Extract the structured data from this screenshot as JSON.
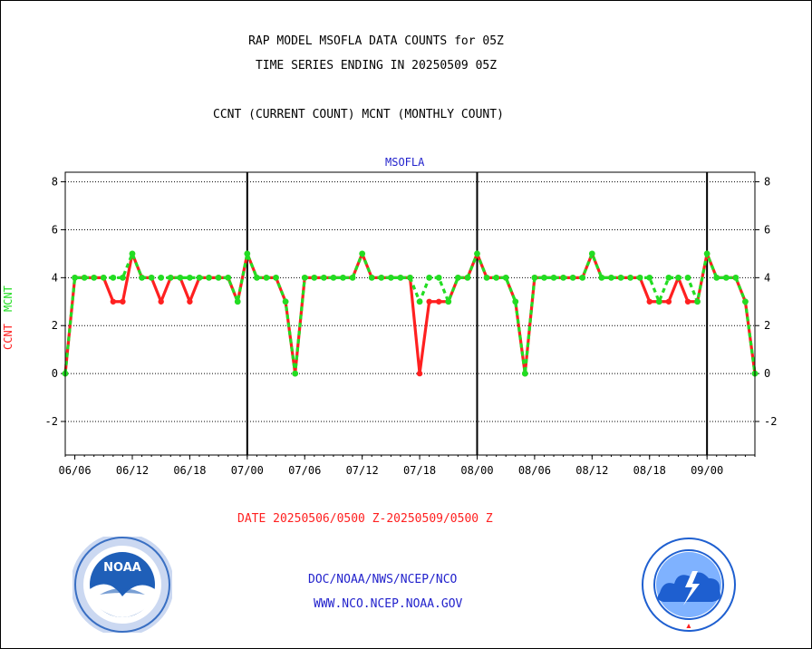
{
  "header": {
    "title_line1": "RAP MODEL MSOFLA DATA COUNTS for 05Z",
    "title_line2": "TIME SERIES ENDING IN 20250509 05Z",
    "subtitle": "CCNT (CURRENT COUNT) MCNT (MONTHLY COUNT)"
  },
  "station": "MSOFLA",
  "axis_labels": {
    "ccnt": "CCNT",
    "mcnt": "MCNT"
  },
  "date_range": "DATE 20250506/0500 Z-20250509/0500 Z",
  "footer": {
    "line1": "DOC/NOAA/NWS/NCEP/NCO",
    "line2": "WWW.NCO.NCEP.NOAA.GOV"
  },
  "logos": {
    "left": "noaa-logo",
    "right": "national-weather-service-logo"
  },
  "colors": {
    "ccnt": "#ff2020",
    "mcnt": "#22dd22",
    "text": "#000000",
    "blue_text": "#2222cc",
    "noaa_blue": "#1f5fb8",
    "nws_blue": "#1e5fd0"
  },
  "chart_data": {
    "type": "line",
    "title": "MSOFLA",
    "ylabel": "CCNT  MCNT",
    "ylim": [
      -3.4,
      8.4
    ],
    "yticks": [
      -2,
      0,
      2,
      4,
      6,
      8
    ],
    "xticks": [
      "06/06",
      "06/12",
      "06/18",
      "07/00",
      "07/06",
      "07/12",
      "07/18",
      "08/00",
      "08/06",
      "08/12",
      "08/18",
      "09/00"
    ],
    "xtick_positions": [
      1,
      7,
      13,
      19,
      25,
      31,
      37,
      43,
      49,
      55,
      61,
      67
    ],
    "day_boundaries": [
      19,
      43,
      67
    ],
    "xlim": [
      0,
      72
    ],
    "x": [
      0,
      1,
      2,
      3,
      4,
      5,
      6,
      7,
      8,
      9,
      10,
      11,
      12,
      13,
      14,
      15,
      16,
      17,
      18,
      19,
      20,
      21,
      22,
      23,
      24,
      25,
      26,
      27,
      28,
      29,
      30,
      31,
      32,
      33,
      34,
      35,
      36,
      37,
      38,
      39,
      40,
      41,
      42,
      43,
      44,
      45,
      46,
      47,
      48,
      49,
      50,
      51,
      52,
      53,
      54,
      55,
      56,
      57,
      58,
      59,
      60,
      61,
      62,
      63,
      64,
      65,
      66,
      67,
      68,
      69,
      70,
      71,
      72
    ],
    "series": [
      {
        "name": "CCNT",
        "values": [
          0,
          4,
          4,
          4,
          4,
          3,
          3,
          5,
          4,
          4,
          3,
          4,
          4,
          3,
          4,
          4,
          4,
          4,
          3,
          5,
          4,
          4,
          4,
          3,
          0,
          4,
          4,
          4,
          4,
          4,
          4,
          5,
          4,
          4,
          4,
          4,
          4,
          0,
          3,
          3,
          3,
          4,
          4,
          5,
          4,
          4,
          4,
          3,
          0,
          4,
          4,
          4,
          4,
          4,
          4,
          5,
          4,
          4,
          4,
          4,
          4,
          3,
          3,
          3,
          4,
          3,
          3,
          5,
          4,
          4,
          4,
          3,
          0
        ]
      },
      {
        "name": "MCNT",
        "values": [
          0,
          4,
          4,
          4,
          4,
          4,
          4,
          5,
          4,
          4,
          4,
          4,
          4,
          4,
          4,
          4,
          4,
          4,
          3,
          5,
          4,
          4,
          4,
          3,
          0,
          4,
          4,
          4,
          4,
          4,
          4,
          5,
          4,
          4,
          4,
          4,
          4,
          3,
          4,
          4,
          3,
          4,
          4,
          5,
          4,
          4,
          4,
          3,
          0,
          4,
          4,
          4,
          4,
          4,
          4,
          5,
          4,
          4,
          4,
          4,
          4,
          4,
          3,
          4,
          4,
          4,
          3,
          5,
          4,
          4,
          4,
          3,
          0
        ]
      }
    ]
  }
}
